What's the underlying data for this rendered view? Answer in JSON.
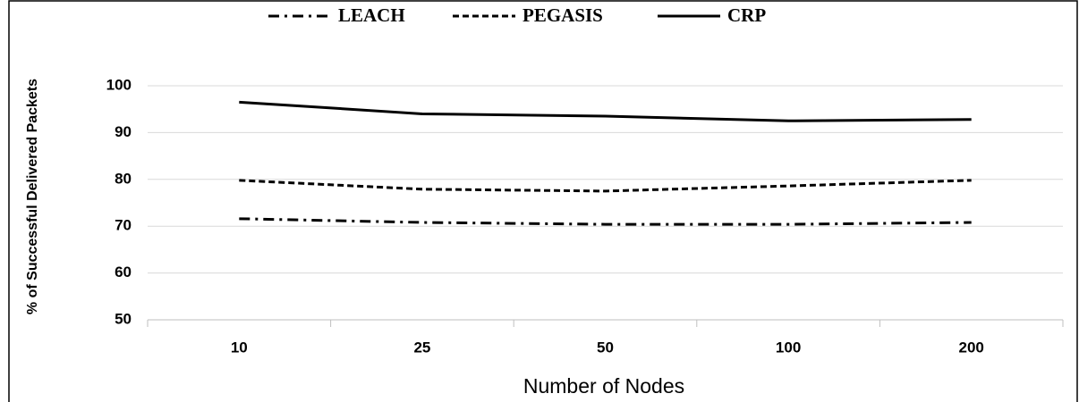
{
  "chart_data": {
    "type": "line",
    "x_label": "Number of Nodes",
    "y_label": "% of Successful Delivered Packets",
    "categories": [
      "10",
      "25",
      "50",
      "100",
      "200"
    ],
    "series": [
      {
        "name": "LEACH",
        "color": "#000000",
        "line_style": "dashdot",
        "values": [
          71.6,
          70.8,
          70.4,
          70.4,
          70.8
        ]
      },
      {
        "name": "PEGASIS",
        "color": "#000000",
        "line_style": "dashed",
        "values": [
          79.8,
          77.9,
          77.5,
          78.6,
          79.8
        ]
      },
      {
        "name": "CRP",
        "color": "#000000",
        "line_style": "solid",
        "values": [
          96.5,
          94,
          93.5,
          92.5,
          92.8
        ]
      }
    ],
    "ylim": [
      50,
      100
    ],
    "yticks": [
      50,
      60,
      70,
      80,
      90,
      100
    ],
    "grid": true,
    "legend": "top"
  }
}
